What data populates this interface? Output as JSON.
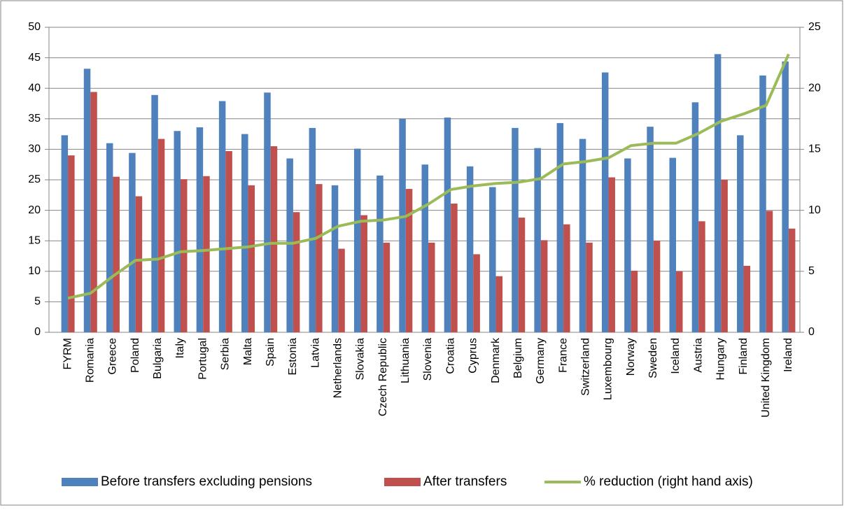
{
  "chart_data": {
    "type": "bar-line",
    "categories": [
      "FYRM",
      "Romania",
      "Greece",
      "Poland",
      "Bulgaria",
      "Italy",
      "Portugal",
      "Serbia",
      "Malta",
      "Spain",
      "Estonia",
      "Latvia",
      "Netherlands",
      "Slovakia",
      "Czech Republic",
      "Lithuania",
      "Slovenia",
      "Croatia",
      "Cyprus",
      "Denmark",
      "Belgium",
      "Germany",
      "France",
      "Switzerland",
      "Luxembourg",
      "Norway",
      "Sweden",
      "Iceland",
      "Austria",
      "Hungary",
      "Finland",
      "United Kingdom",
      "Ireland"
    ],
    "series": [
      {
        "name": "Before transfers excluding pensions",
        "type": "bar",
        "color": "#4f81bd",
        "values": [
          32.3,
          43.2,
          31,
          29.4,
          38.9,
          33,
          33.6,
          37.9,
          32.5,
          39.3,
          28.5,
          33.5,
          24.1,
          30.1,
          25.7,
          35,
          27.5,
          35.2,
          27.2,
          23.8,
          33.5,
          30.2,
          34.3,
          31.7,
          42.6,
          28.5,
          33.7,
          28.6,
          37.7,
          45.6,
          32.3,
          42.1,
          44.4
        ]
      },
      {
        "name": "After transfers",
        "type": "bar",
        "color": "#c0504d",
        "values": [
          29,
          39.4,
          25.5,
          22.3,
          31.7,
          25.1,
          25.6,
          29.7,
          24.1,
          30.5,
          19.7,
          24.3,
          13.7,
          19.2,
          14.7,
          23.5,
          14.7,
          21.1,
          12.8,
          9.2,
          18.8,
          15.1,
          17.7,
          14.7,
          25.4,
          10.1,
          15,
          10,
          18.2,
          25,
          10.9,
          19.9,
          17
        ]
      },
      {
        "name": "% reduction (right hand axis)",
        "type": "line",
        "axis": "y2",
        "color": "#9bbb59",
        "values": [
          2.8,
          3.2,
          4.6,
          5.9,
          6.0,
          6.6,
          6.7,
          6.85,
          7.0,
          7.3,
          7.3,
          7.7,
          8.7,
          9.1,
          9.2,
          9.5,
          10.5,
          11.7,
          12.0,
          12.2,
          12.3,
          12.6,
          13.8,
          14.0,
          14.3,
          15.3,
          15.5,
          15.5,
          16.3,
          17.3,
          17.9,
          18.6,
          22.8
        ]
      }
    ],
    "ylim": [
      0,
      50
    ],
    "yticks": [
      0,
      5,
      10,
      15,
      20,
      25,
      30,
      35,
      40,
      45,
      50
    ],
    "y2lim": [
      0,
      25
    ],
    "y2ticks": [
      0,
      5,
      10,
      15,
      20,
      25
    ],
    "grid": true,
    "legend": "bottom"
  }
}
